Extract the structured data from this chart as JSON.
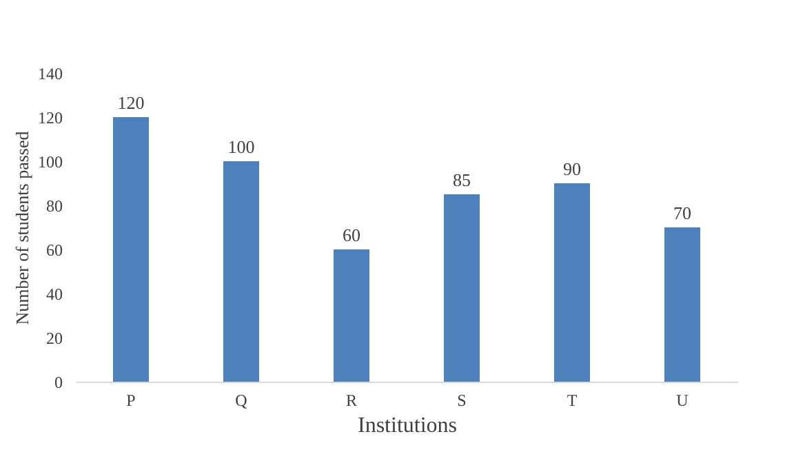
{
  "chart_data": {
    "type": "bar",
    "xlabel": "Institutions",
    "ylabel": "Number of students passed",
    "categories": [
      "P",
      "Q",
      "R",
      "S",
      "T",
      "U"
    ],
    "values": [
      120,
      100,
      60,
      85,
      90,
      70
    ],
    "color": "#4f81bd",
    "ylim": [
      0,
      140
    ],
    "yticks": [
      0,
      20,
      40,
      60,
      80,
      100,
      120,
      140
    ],
    "grid": false,
    "data_labels": true
  }
}
